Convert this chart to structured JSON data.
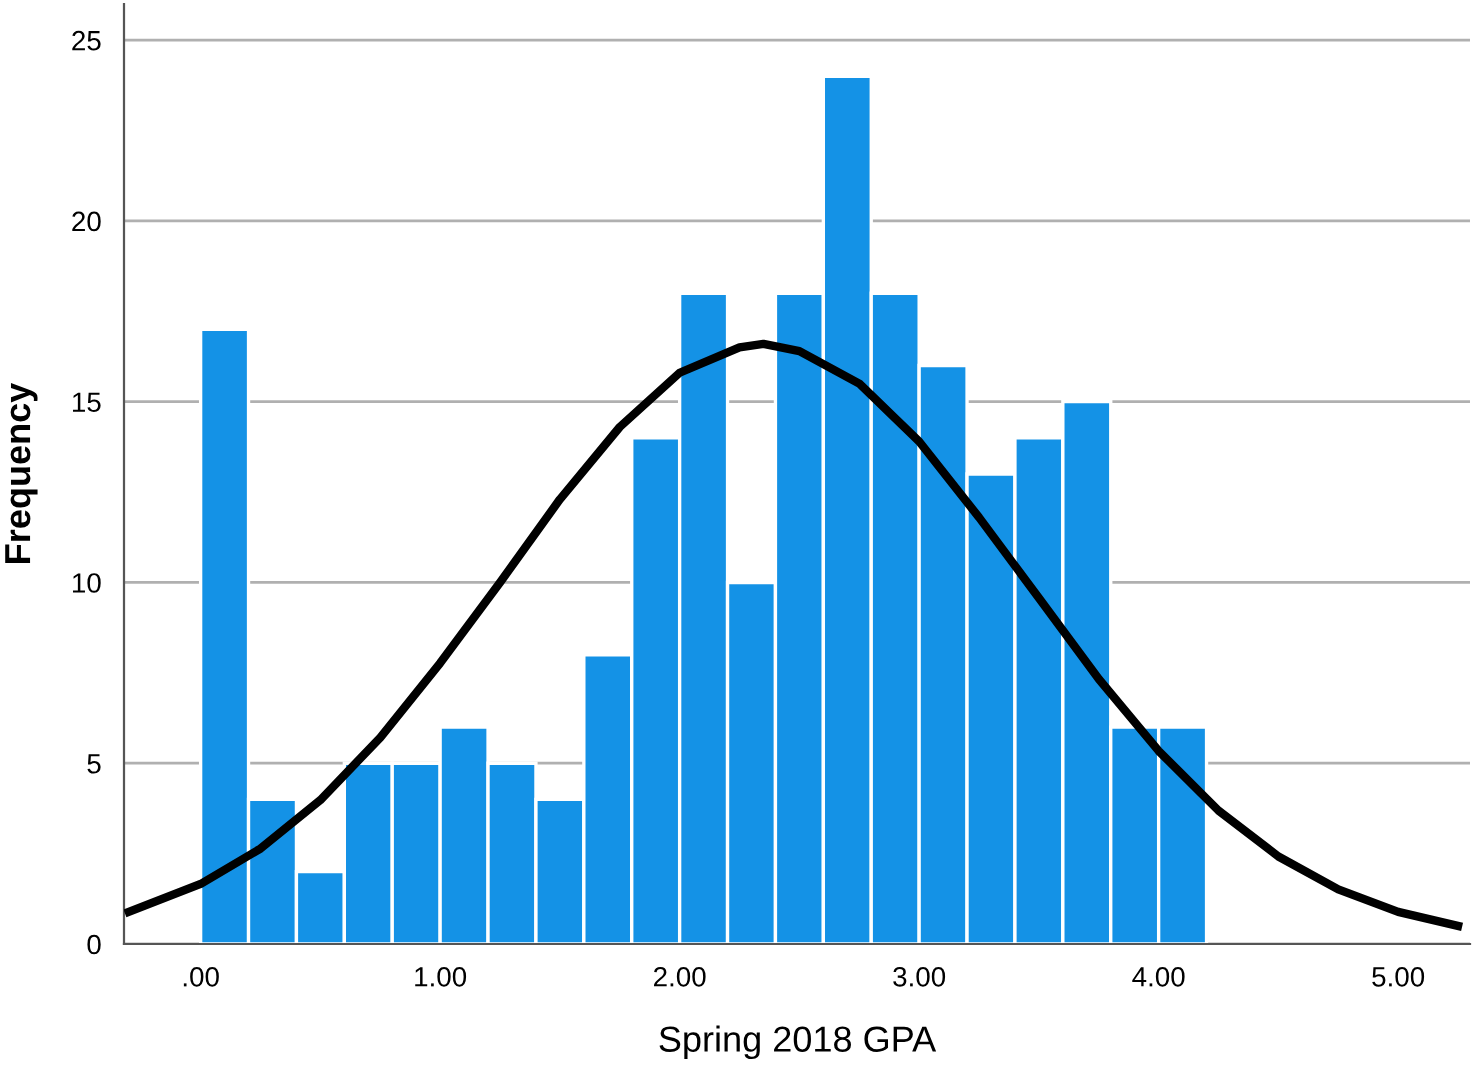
{
  "chart_data": {
    "type": "histogram",
    "xlabel": "Spring 2018 GPA",
    "ylabel": "Frequency",
    "bins": [
      0,
      0.2,
      0.4,
      0.6,
      0.8,
      1.0,
      1.2,
      1.4,
      1.6,
      1.8,
      2.0,
      2.2,
      2.4,
      2.6,
      2.8,
      3.0,
      3.2,
      3.4,
      3.6,
      3.8,
      4.0,
      4.2
    ],
    "values": [
      17,
      4,
      2,
      5,
      5,
      6,
      5,
      4,
      8,
      14,
      18,
      10,
      18,
      24,
      18,
      16,
      13,
      14,
      15,
      6,
      6
    ],
    "color": "#1492e6",
    "series": [
      {
        "type": "line",
        "color": "#000000",
        "x": [
          -0.3,
          0,
          0.25,
          0.5,
          0.75,
          1,
          1.25,
          1.5,
          1.75,
          2,
          2.25,
          2.35,
          2.5,
          2.75,
          3,
          3.25,
          3.5,
          3.75,
          4,
          4.25,
          4.5,
          4.75,
          5,
          5.25
        ],
        "values": [
          0.89,
          1.66,
          2.64,
          3.98,
          5.71,
          7.77,
          10.0,
          12.3,
          14.3,
          15.8,
          16.5,
          16.6,
          16.4,
          15.5,
          13.9,
          11.8,
          9.57,
          7.33,
          5.34,
          3.69,
          2.42,
          1.51,
          0.89,
          0.5
        ]
      }
    ],
    "xlim": [
      -0.32,
      5.3
    ],
    "ylim": [
      0,
      26
    ],
    "xticks": [
      {
        "value": 0,
        "label": ".00"
      },
      {
        "value": 1,
        "label": "1.00"
      },
      {
        "value": 2,
        "label": "2.00"
      },
      {
        "value": 3,
        "label": "3.00"
      },
      {
        "value": 4,
        "label": "4.00"
      },
      {
        "value": 5,
        "label": "5.00"
      }
    ],
    "yticks": [
      0,
      5,
      10,
      15,
      20,
      25
    ],
    "grid": "y"
  }
}
